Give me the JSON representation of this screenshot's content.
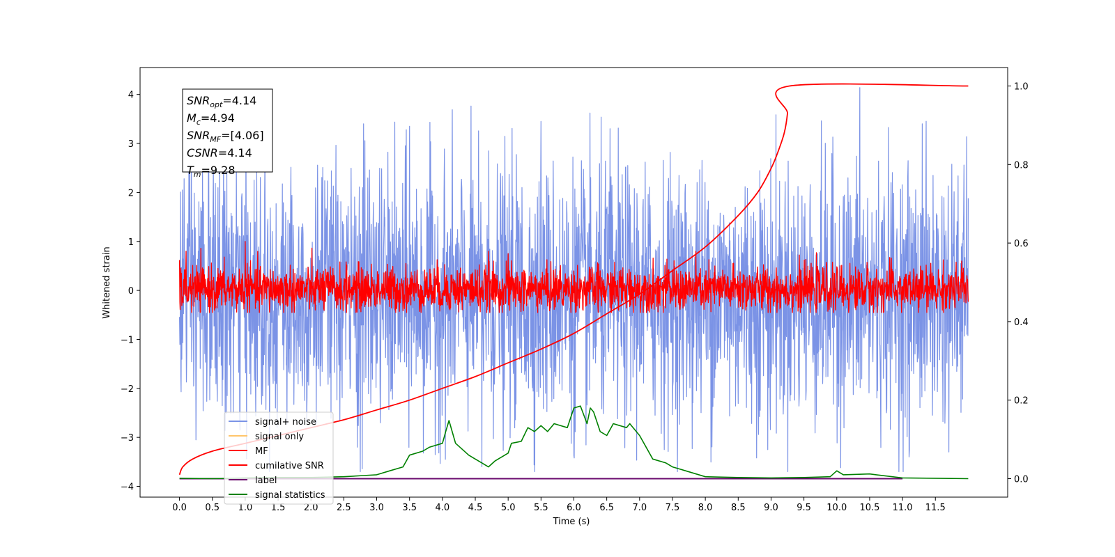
{
  "chart_data": {
    "type": "line",
    "xlabel": "Time (s)",
    "ylabel": "Whitened strain",
    "xlim": [
      -0.6,
      12.6
    ],
    "ylim": [
      -4.22,
      4.55
    ],
    "y2lim": [
      -0.047,
      1.047
    ],
    "xticks": [
      0.0,
      0.5,
      1.0,
      1.5,
      2.0,
      2.5,
      3.0,
      3.5,
      4.0,
      4.5,
      5.0,
      5.5,
      6.0,
      6.5,
      7.0,
      7.5,
      8.0,
      8.5,
      9.0,
      9.5,
      10.0,
      10.5,
      11.0,
      11.5
    ],
    "xtick_labels": [
      "0.0",
      "0.5",
      "1.0",
      "1.5",
      "2.0",
      "2.5",
      "3.0",
      "3.5",
      "4.0",
      "4.5",
      "5.0",
      "5.5",
      "6.0",
      "6.5",
      "7.0",
      "7.5",
      "8.0",
      "8.5",
      "9.0",
      "9.5",
      "10.0",
      "10.5",
      "11.0",
      "11.5"
    ],
    "yticks": [
      -4,
      -3,
      -2,
      -1,
      0,
      1,
      2,
      3,
      4
    ],
    "ytick_labels": [
      "−4",
      "−3",
      "−2",
      "−1",
      "0",
      "1",
      "2",
      "3",
      "4"
    ],
    "y2ticks": [
      0.0,
      0.2,
      0.4,
      0.6,
      0.8,
      1.0
    ],
    "y2tick_labels": [
      "0.0",
      "0.2",
      "0.4",
      "0.6",
      "0.8",
      "1.0"
    ],
    "legend_position": "bottom-left",
    "legend": [
      {
        "label": "signal+ noise",
        "color": "#7b93e6"
      },
      {
        "label": "signal only",
        "color": "#ffc56b"
      },
      {
        "label": "MF",
        "color": "#ff0000"
      },
      {
        "label": "cumilative SNR",
        "color": "#ff0000"
      },
      {
        "label": "label",
        "color": "#6a0a6e"
      },
      {
        "label": "signal statistics",
        "color": "#008000"
      }
    ],
    "annotation": [
      {
        "sym": "SNR",
        "sub": "opt",
        "value": "=4.14"
      },
      {
        "sym": "M",
        "sub": "c",
        "value": "=4.94"
      },
      {
        "sym": "SNR",
        "sub": "MF",
        "value": "=[4.06]"
      },
      {
        "sym": "CSNR",
        "sub": "",
        "value": "=4.14"
      },
      {
        "sym": "T",
        "sub": "m",
        "value": "=9.28"
      }
    ],
    "series": [
      {
        "name": "signal+ noise",
        "axis": "left",
        "color": "#7b93e6",
        "x_range": [
          0.0,
          12.0
        ],
        "envelope": {
          "typical_upper": 2.0,
          "typical_lower": -2.2,
          "max": 4.14,
          "min": -3.7
        },
        "peaks": [
          [
            0.07,
            2.28
          ],
          [
            0.35,
            2.45
          ],
          [
            1.3,
            2.7
          ],
          [
            2.8,
            3.4
          ],
          [
            3.5,
            3.35
          ],
          [
            5.5,
            3.45
          ],
          [
            6.55,
            3.3
          ],
          [
            10.35,
            4.14
          ],
          [
            11.3,
            3.4
          ],
          [
            0.25,
            -3.05
          ],
          [
            2.75,
            -3.7
          ],
          [
            4.6,
            -3.6
          ],
          [
            6.0,
            -3.37
          ],
          [
            8.95,
            -3.25
          ],
          [
            11.1,
            -3.4
          ]
        ]
      },
      {
        "name": "MF",
        "axis": "left",
        "color": "#ff0000",
        "x_range": [
          0.0,
          12.0
        ],
        "envelope": {
          "typical_upper": 0.45,
          "typical_lower": -0.4,
          "max": 1.0,
          "min": -0.45
        },
        "peaks": [
          [
            0.0,
            0.62
          ],
          [
            1.0,
            1.0
          ],
          [
            0.1,
            0.8
          ],
          [
            4.7,
            0.8
          ],
          [
            5.0,
            0.75
          ],
          [
            11.9,
            0.6
          ]
        ]
      },
      {
        "name": "cumilative SNR",
        "axis": "right",
        "color": "#ff0000",
        "x": [
          0.0,
          0.05,
          0.2,
          0.5,
          1.0,
          1.5,
          2.0,
          2.5,
          3.0,
          3.5,
          4.0,
          4.5,
          5.0,
          5.5,
          6.0,
          6.5,
          7.0,
          7.5,
          8.0,
          8.5,
          8.8,
          9.0,
          9.1,
          9.2,
          9.25,
          9.28,
          12.0
        ],
        "values": [
          0.01,
          0.03,
          0.05,
          0.07,
          0.09,
          0.11,
          0.13,
          0.15,
          0.175,
          0.2,
          0.23,
          0.26,
          0.295,
          0.33,
          0.37,
          0.42,
          0.47,
          0.53,
          0.59,
          0.67,
          0.73,
          0.79,
          0.83,
          0.88,
          0.93,
          1.0,
          1.0
        ]
      },
      {
        "name": "label",
        "axis": "right",
        "color": "#6a0a6e",
        "x": [
          0.0,
          11.0
        ],
        "values": [
          0.0,
          0.0
        ]
      },
      {
        "name": "signal statistics",
        "axis": "right",
        "color": "#008000",
        "x": [
          0.0,
          0.5,
          1.0,
          1.5,
          2.0,
          2.5,
          2.8,
          3.0,
          3.2,
          3.4,
          3.5,
          3.7,
          3.8,
          4.0,
          4.05,
          4.1,
          4.2,
          4.3,
          4.4,
          4.5,
          4.6,
          4.7,
          4.8,
          5.0,
          5.05,
          5.2,
          5.3,
          5.4,
          5.5,
          5.6,
          5.7,
          5.8,
          5.9,
          6.0,
          6.1,
          6.2,
          6.25,
          6.3,
          6.4,
          6.5,
          6.6,
          6.8,
          6.85,
          7.0,
          7.2,
          7.4,
          7.5,
          7.6,
          7.7,
          8.0,
          8.5,
          9.0,
          9.5,
          9.9,
          10.0,
          10.1,
          10.5,
          10.6,
          11.0,
          11.5,
          12.0
        ],
        "values": [
          0.001,
          0.0,
          0.002,
          0.003,
          0.003,
          0.005,
          0.008,
          0.01,
          0.02,
          0.03,
          0.06,
          0.07,
          0.08,
          0.09,
          0.12,
          0.148,
          0.09,
          0.075,
          0.06,
          0.05,
          0.04,
          0.03,
          0.045,
          0.065,
          0.09,
          0.095,
          0.13,
          0.12,
          0.135,
          0.12,
          0.14,
          0.135,
          0.13,
          0.18,
          0.185,
          0.14,
          0.18,
          0.17,
          0.12,
          0.11,
          0.14,
          0.13,
          0.14,
          0.11,
          0.05,
          0.04,
          0.03,
          0.025,
          0.02,
          0.005,
          0.003,
          0.002,
          0.003,
          0.005,
          0.02,
          0.01,
          0.012,
          0.01,
          0.002,
          0.001,
          0.0
        ]
      }
    ]
  }
}
